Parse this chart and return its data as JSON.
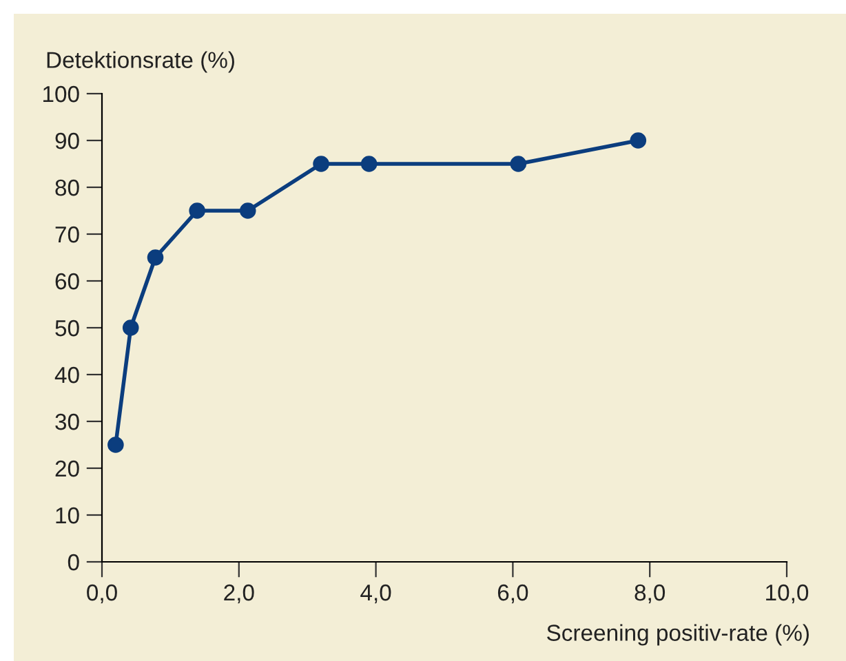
{
  "chart_data": {
    "type": "line",
    "xlabel": "Screening positiv-rate (%)",
    "ylabel": "Detektionsrate (%)",
    "series": [
      {
        "color": "#0b3d7e",
        "x": [
          0.2,
          0.42,
          0.78,
          1.39,
          2.13,
          3.2,
          3.9,
          6.08,
          7.83
        ],
        "values": [
          25,
          50,
          65,
          75,
          75,
          85,
          85,
          85,
          90
        ]
      }
    ],
    "xlim": [
      0,
      10
    ],
    "ylim": [
      0,
      100
    ],
    "xticks": [
      {
        "value": 0,
        "label": "0,0"
      },
      {
        "value": 2,
        "label": "2,0"
      },
      {
        "value": 4,
        "label": "4,0"
      },
      {
        "value": 6,
        "label": "6,0"
      },
      {
        "value": 8,
        "label": "8,0"
      },
      {
        "value": 10,
        "label": "10,0"
      }
    ],
    "yticks": [
      0,
      10,
      20,
      30,
      40,
      50,
      60,
      70,
      80,
      90,
      100
    ],
    "marker": "circle",
    "line_style": "solid",
    "grid": false
  }
}
